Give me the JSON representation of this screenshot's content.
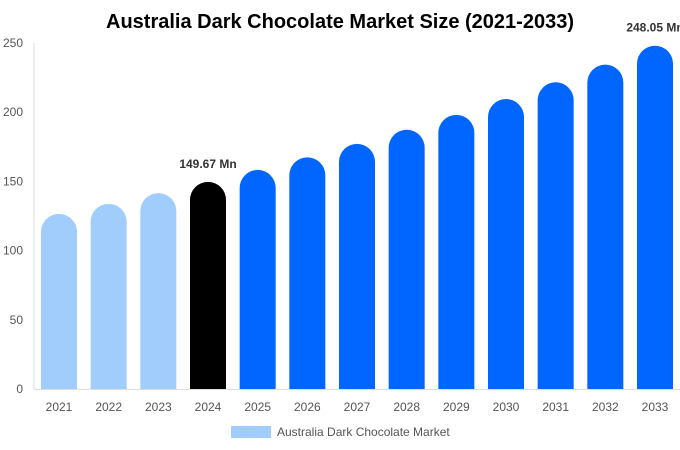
{
  "chart_data": {
    "type": "bar",
    "title": "Australia Dark Chocolate Market Size (2021-2033)",
    "categories": [
      "2021",
      "2022",
      "2023",
      "2024",
      "2025",
      "2026",
      "2027",
      "2028",
      "2029",
      "2030",
      "2031",
      "2032",
      "2033"
    ],
    "series": [
      {
        "name": "Australia Dark Chocolate Market",
        "values": [
          126.5,
          133.8,
          141.5,
          149.67,
          158.3,
          167.4,
          177.1,
          187.3,
          198.1,
          209.5,
          221.6,
          234.4,
          248.05
        ]
      }
    ],
    "data_labels": {
      "3": "149.67 Mn",
      "12": "248.05 Mn"
    },
    "ylim": [
      0,
      250
    ],
    "yticks": [
      0,
      50,
      100,
      150,
      200,
      250
    ],
    "xlabel": "",
    "ylabel": "",
    "grid": false,
    "legend_position": "bottom",
    "colors": {
      "historic": "#a0cdfc",
      "current": "#000000",
      "forecast": "#0066ff"
    }
  }
}
